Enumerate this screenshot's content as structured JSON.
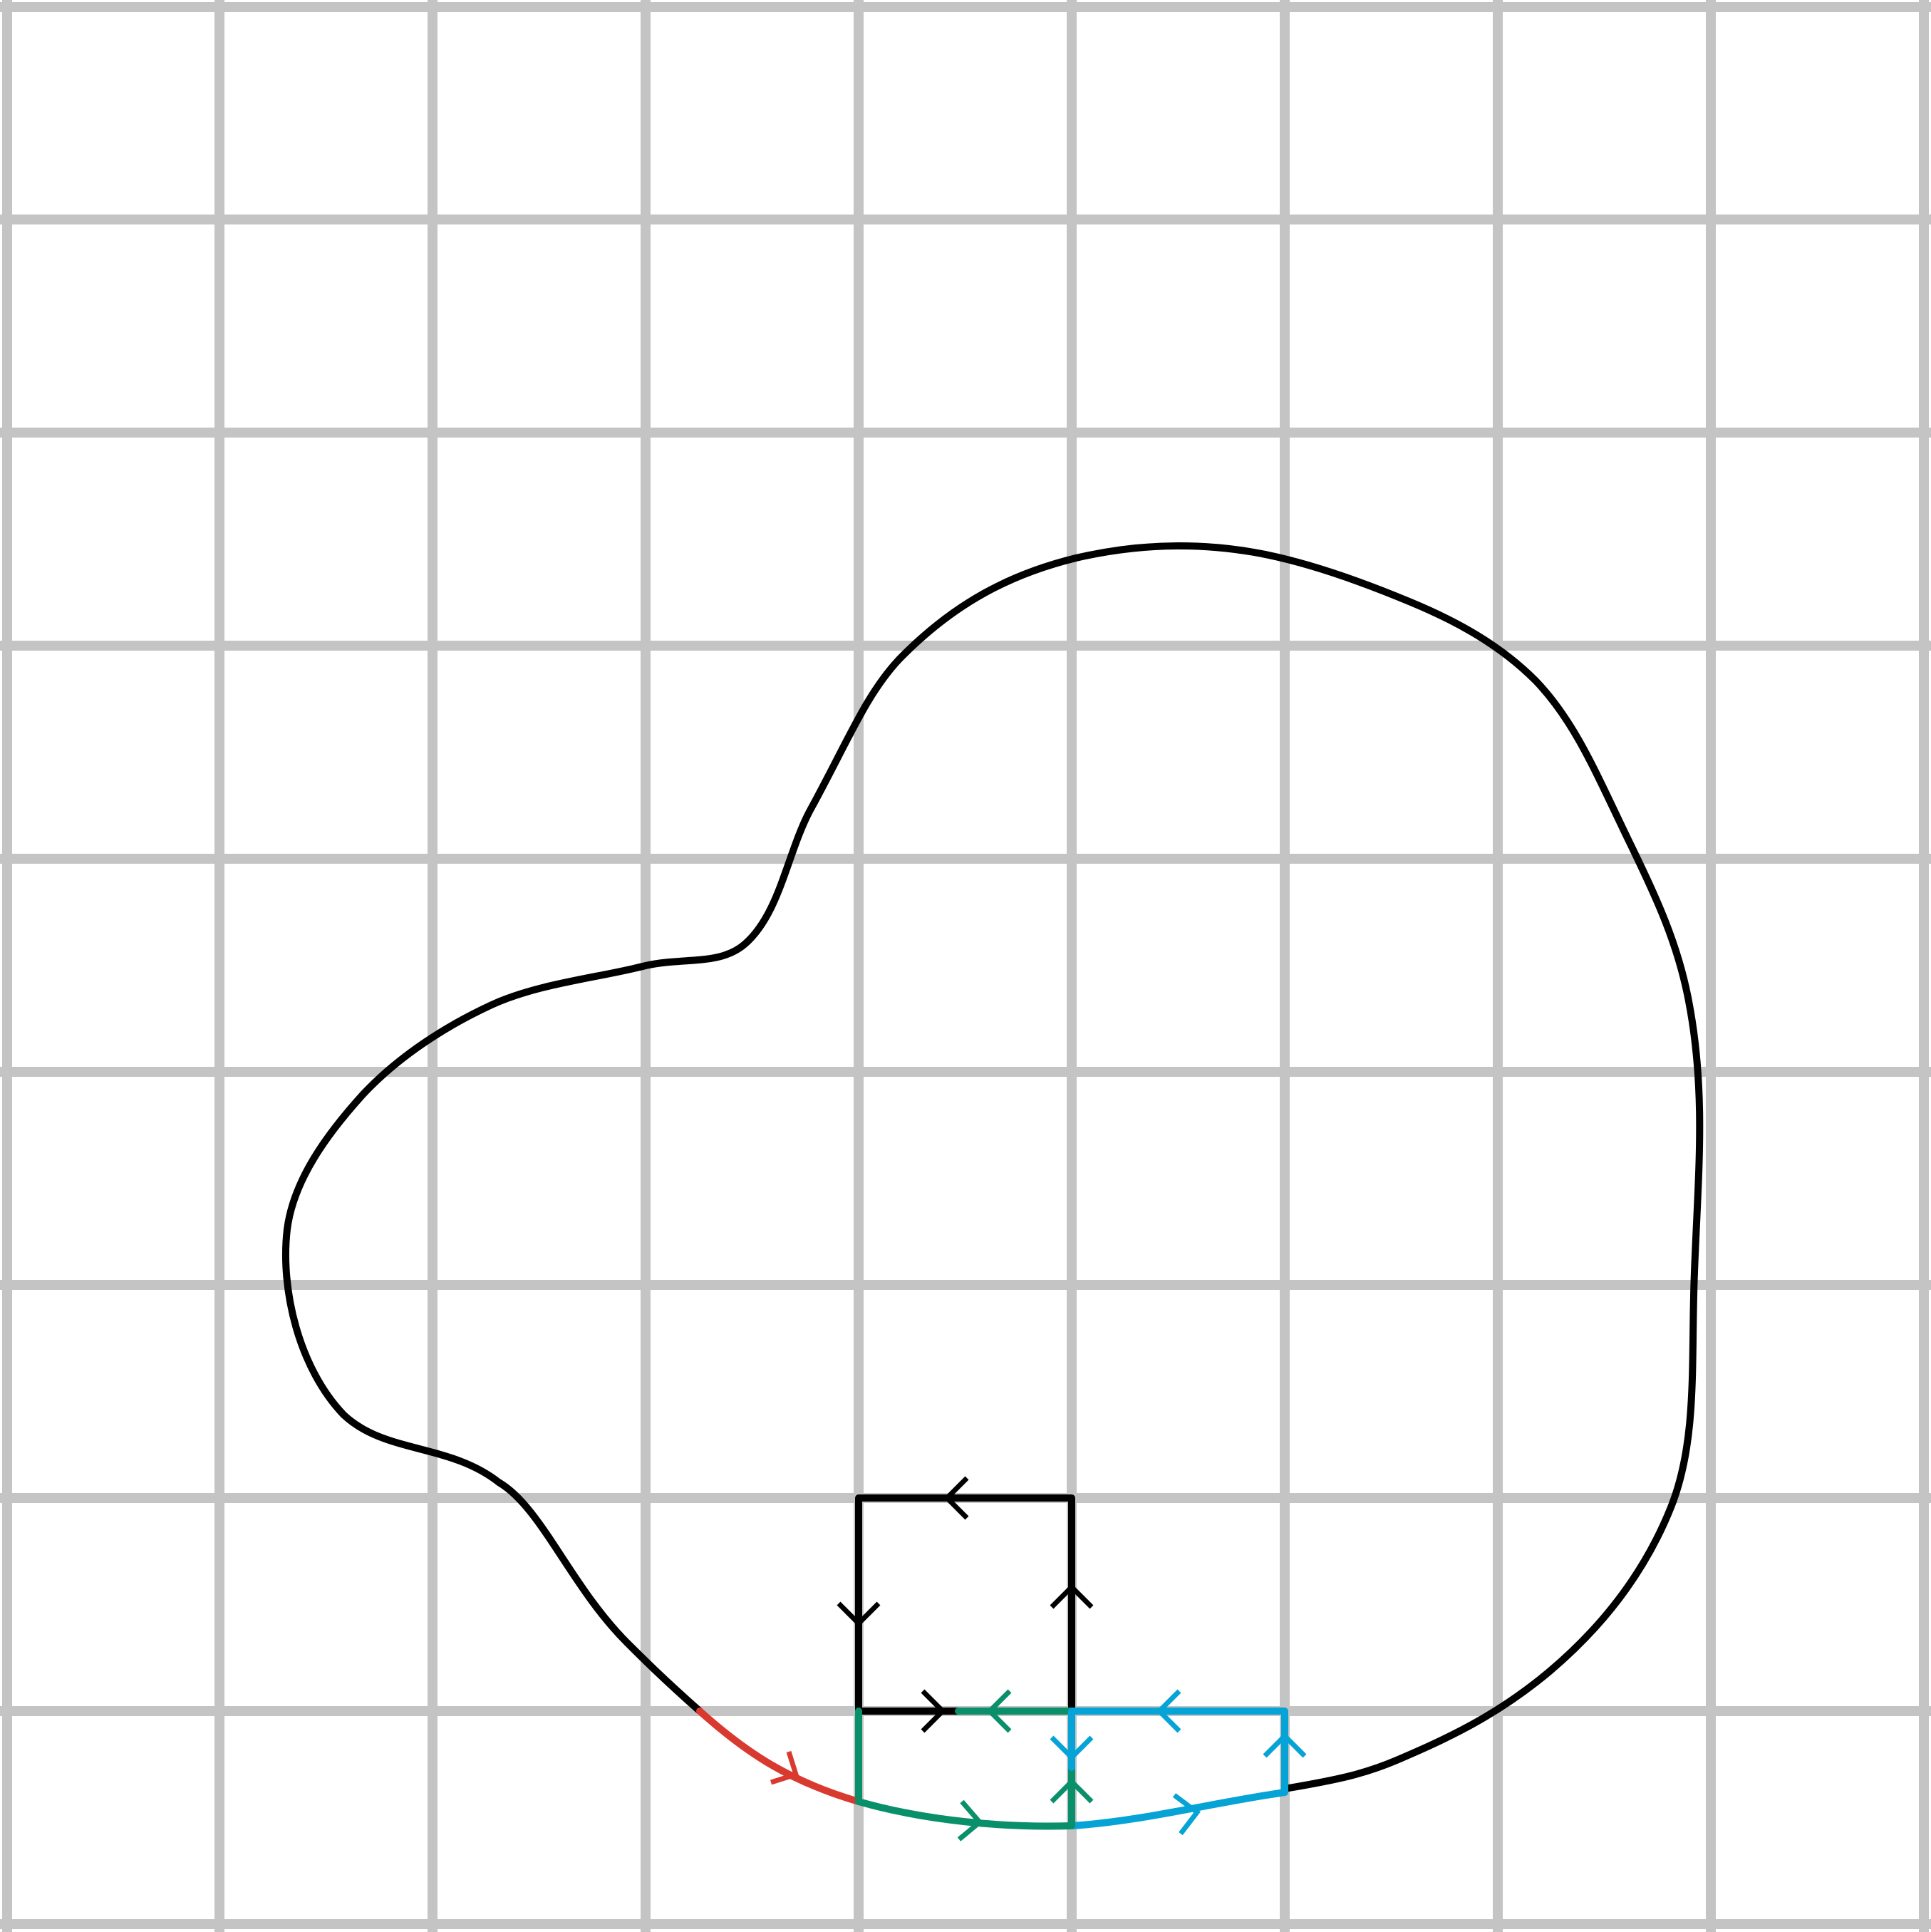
{
  "grid": {
    "color": "#c4c4c4",
    "cells": 9
  },
  "colors": {
    "curve": "#000000",
    "red": "#d93a2f",
    "green": "#0a8f6b",
    "blue": "#05a3d6",
    "black": "#000000"
  },
  "icons": {
    "arrowhead": "chevron-arrow-icon"
  }
}
